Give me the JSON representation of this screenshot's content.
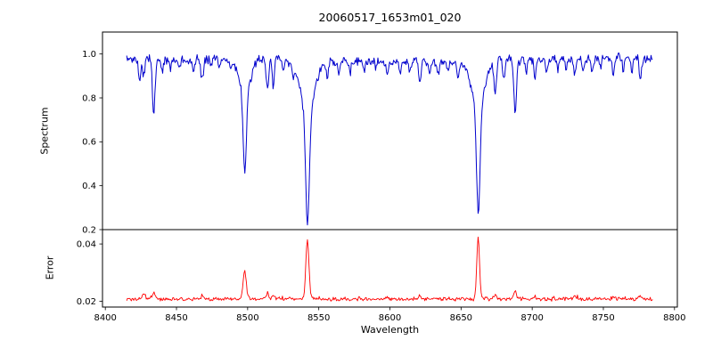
{
  "chart_data": {
    "type": "line",
    "title": "20060517_1653m01_020",
    "xlabel": "Wavelength",
    "xlim": [
      8398,
      8802
    ],
    "x_data_range": [
      8415,
      8785
    ],
    "xticks": {
      "values": [
        8400,
        8450,
        8500,
        8550,
        8600,
        8650,
        8700,
        8750,
        8800
      ],
      "labels": [
        "8400",
        "8450",
        "8500",
        "8550",
        "8600",
        "8650",
        "8700",
        "8750",
        "8800"
      ]
    },
    "grid": false,
    "panels": [
      {
        "name": "spectrum",
        "ylabel": "Spectrum",
        "ylim": [
          0.2,
          1.1
        ],
        "yticks": {
          "values": [
            0.2,
            0.4,
            0.6,
            0.8,
            1.0
          ],
          "labels": [
            "0.2",
            "0.4",
            "0.6",
            "0.8",
            "1.0"
          ]
        },
        "color": "#0000cd",
        "continuum": 0.972,
        "noise_amplitude": 0.012,
        "strong_lines": [
          {
            "center": 8498.0,
            "core_depth": 0.36,
            "core_sigma": 1.1,
            "wing_depth": 0.16,
            "wing_sigma": 4.0,
            "min_flux": 0.46
          },
          {
            "center": 8542.1,
            "core_depth": 0.5,
            "core_sigma": 1.3,
            "wing_depth": 0.23,
            "wing_sigma": 5.0,
            "min_flux": 0.25
          },
          {
            "center": 8662.1,
            "core_depth": 0.48,
            "core_sigma": 1.2,
            "wing_depth": 0.22,
            "wing_sigma": 4.5,
            "min_flux": 0.28
          }
        ],
        "weak_lines": [
          [
            8424,
            0.1,
            0.8
          ],
          [
            8427,
            0.08,
            0.7
          ],
          [
            8434,
            0.26,
            0.9
          ],
          [
            8440,
            0.06,
            0.7
          ],
          [
            8446,
            0.04,
            0.6
          ],
          [
            8452,
            0.05,
            0.7
          ],
          [
            8462,
            0.06,
            0.7
          ],
          [
            8468,
            0.1,
            0.8
          ],
          [
            8474,
            0.04,
            0.6
          ],
          [
            8480,
            0.05,
            0.7
          ],
          [
            8488,
            0.04,
            0.6
          ],
          [
            8514,
            0.14,
            0.9
          ],
          [
            8518,
            0.11,
            0.8
          ],
          [
            8525,
            0.05,
            0.7
          ],
          [
            8532,
            0.05,
            0.7
          ],
          [
            8556,
            0.07,
            0.8
          ],
          [
            8564,
            0.05,
            0.7
          ],
          [
            8572,
            0.04,
            0.7
          ],
          [
            8582,
            0.05,
            0.7
          ],
          [
            8590,
            0.04,
            0.6
          ],
          [
            8598,
            0.07,
            0.8
          ],
          [
            8607,
            0.05,
            0.7
          ],
          [
            8614,
            0.04,
            0.6
          ],
          [
            8621,
            0.09,
            0.8
          ],
          [
            8628,
            0.04,
            0.6
          ],
          [
            8634,
            0.05,
            0.7
          ],
          [
            8641,
            0.04,
            0.6
          ],
          [
            8648,
            0.07,
            0.8
          ],
          [
            8674,
            0.15,
            0.9
          ],
          [
            8680,
            0.08,
            0.8
          ],
          [
            8688,
            0.24,
            0.9
          ],
          [
            8696,
            0.06,
            0.7
          ],
          [
            8702,
            0.08,
            0.8
          ],
          [
            8710,
            0.05,
            0.7
          ],
          [
            8718,
            0.04,
            0.7
          ],
          [
            8724,
            0.04,
            0.6
          ],
          [
            8730,
            0.07,
            0.8
          ],
          [
            8736,
            0.05,
            0.7
          ],
          [
            8742,
            0.06,
            0.8
          ],
          [
            8748,
            0.04,
            0.7
          ],
          [
            8757,
            0.08,
            0.8
          ],
          [
            8764,
            0.05,
            0.7
          ],
          [
            8770,
            0.06,
            0.7
          ],
          [
            8776,
            0.1,
            0.8
          ]
        ]
      },
      {
        "name": "error",
        "ylabel": "Error",
        "ylim": [
          0.018,
          0.045
        ],
        "yticks": {
          "values": [
            0.02,
            0.04
          ],
          "labels": [
            "0.02",
            "0.04"
          ]
        },
        "color": "#ff0000",
        "baseline": 0.0208,
        "noise_amplitude": 0.0004,
        "peaks": [
          [
            8427,
            0.002,
            1.0
          ],
          [
            8434,
            0.0025,
            1.0
          ],
          [
            8468,
            0.0012,
            0.9
          ],
          [
            8498,
            0.0095,
            1.1
          ],
          [
            8514,
            0.0018,
            0.9
          ],
          [
            8518,
            0.0015,
            0.8
          ],
          [
            8542,
            0.0205,
            1.1
          ],
          [
            8598,
            0.0008,
            0.8
          ],
          [
            8621,
            0.001,
            0.8
          ],
          [
            8662,
            0.0215,
            0.95
          ],
          [
            8674,
            0.0015,
            0.9
          ],
          [
            8688,
            0.0028,
            0.9
          ],
          [
            8702,
            0.001,
            0.8
          ],
          [
            8730,
            0.001,
            0.8
          ],
          [
            8757,
            0.0012,
            0.8
          ],
          [
            8776,
            0.0015,
            0.8
          ]
        ]
      }
    ]
  }
}
